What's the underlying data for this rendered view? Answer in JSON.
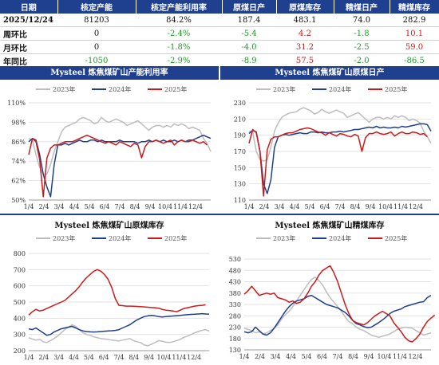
{
  "summary": {
    "headers": [
      "日期",
      "核定产能",
      "核定产能利用率",
      "原煤日产",
      "原煤库存",
      "精煤日产",
      "精煤库存"
    ],
    "rows": [
      {
        "label": "2025/12/24",
        "cells": [
          {
            "text": "81203",
            "tone": "neu"
          },
          {
            "text": "84.2%",
            "tone": "neu"
          },
          {
            "text": "187.4",
            "tone": "neu"
          },
          {
            "text": "483.1",
            "tone": "neu"
          },
          {
            "text": "74.0",
            "tone": "neu"
          },
          {
            "text": "282.9",
            "tone": "neu"
          }
        ]
      },
      {
        "label": "周环比",
        "cells": [
          {
            "text": "0",
            "tone": "neu"
          },
          {
            "text": "-2.4%",
            "tone": "neg"
          },
          {
            "text": "-5.4",
            "tone": "neg"
          },
          {
            "text": "4.2",
            "tone": "pos"
          },
          {
            "text": "-1.8",
            "tone": "neg"
          },
          {
            "text": "10.1",
            "tone": "pos"
          }
        ]
      },
      {
        "label": "月环比",
        "cells": [
          {
            "text": "0",
            "tone": "neu"
          },
          {
            "text": "-1.8%",
            "tone": "neg"
          },
          {
            "text": "-4.0",
            "tone": "neg"
          },
          {
            "text": "31.2",
            "tone": "pos"
          },
          {
            "text": "-2.5",
            "tone": "neg"
          },
          {
            "text": "59.0",
            "tone": "pos"
          }
        ]
      },
      {
        "label": "年同比",
        "cells": [
          {
            "text": "-1050",
            "tone": "neg"
          },
          {
            "text": "-2.9%",
            "tone": "neg"
          },
          {
            "text": "-8.9",
            "tone": "neg"
          },
          {
            "text": "57.5",
            "tone": "pos"
          },
          {
            "text": "-2.0",
            "tone": "neg"
          },
          {
            "text": "-86.5",
            "tone": "neg"
          }
        ]
      }
    ]
  },
  "colors": {
    "y2023": "#bdbdbd",
    "y2024": "#1f3f8f",
    "y2025": "#cc1a1a",
    "header_bg": "#1f3f8f",
    "positive": "#cc1a1a",
    "negative": "#1c9a2a"
  },
  "chart_data": [
    {
      "type": "line",
      "title": "Mysteel 炼焦煤矿山产能利用率",
      "x_ticks": [
        "1/4",
        "2/4",
        "3/4",
        "4/4",
        "5/4",
        "6/4",
        "7/4",
        "8/4",
        "9/4",
        "10/4",
        "11/4",
        "12/4"
      ],
      "y_ticks": [
        "50%",
        "62%",
        "74%",
        "86%",
        "98%",
        "110%"
      ],
      "ylim": [
        50,
        110
      ],
      "x_max": 12,
      "legend_position": "top",
      "series": [
        {
          "name": "2023年",
          "color": "#bdbdbd",
          "values": [
            88,
            87,
            78,
            70,
            66,
            66,
            72,
            80,
            86,
            92,
            95,
            96,
            97,
            98,
            100,
            101,
            100,
            99,
            97,
            98,
            101,
            99,
            98,
            99,
            100,
            99,
            98,
            96,
            97,
            98,
            99,
            97,
            95,
            93,
            95,
            96,
            96,
            95,
            96,
            95,
            97,
            96,
            97,
            96,
            94,
            95,
            94,
            93,
            88,
            85,
            80
          ]
        },
        {
          "name": "2024年",
          "color": "#1f3f8f",
          "values": [
            86,
            88,
            87,
            78,
            66,
            58,
            52,
            72,
            84,
            84,
            85,
            84,
            85,
            86,
            87,
            86,
            86,
            87,
            87,
            86,
            87,
            86,
            86,
            86,
            86,
            87,
            86,
            86,
            86,
            86,
            85,
            86,
            86,
            87,
            86,
            87,
            86,
            87,
            86,
            86,
            87,
            86,
            87,
            86,
            87,
            87,
            88,
            89,
            90,
            89,
            88
          ]
        },
        {
          "name": "2025年",
          "color": "#cc1a1a",
          "values": [
            78,
            88,
            86,
            75,
            52,
            76,
            82,
            84,
            84,
            85,
            86,
            86,
            86,
            87,
            88,
            89,
            90,
            89,
            88,
            87,
            86,
            85,
            86,
            85,
            84,
            86,
            85,
            84,
            83,
            85,
            84,
            76,
            83,
            86,
            86,
            87,
            86,
            85,
            86,
            87,
            84,
            86,
            87,
            86,
            86,
            87,
            86,
            85,
            86,
            84
          ]
        }
      ]
    },
    {
      "type": "line",
      "title": "Mysteel 炼焦煤矿山原煤日产",
      "x_ticks": [
        "1/4",
        "2/4",
        "3/4",
        "4/4",
        "5/4",
        "6/4",
        "7/4",
        "8/4",
        "9/4",
        "10/4",
        "11/4",
        "12/4"
      ],
      "y_ticks": [
        "110",
        "130",
        "150",
        "170",
        "190",
        "210",
        "230"
      ],
      "ylim": [
        110,
        230
      ],
      "x_max": 12,
      "legend_position": "top",
      "series": [
        {
          "name": "2023年",
          "color": "#bdbdbd",
          "values": [
            195,
            194,
            170,
            160,
            158,
            160,
            175,
            195,
            205,
            212,
            215,
            217,
            218,
            219,
            222,
            224,
            222,
            220,
            216,
            218,
            222,
            219,
            217,
            219,
            221,
            219,
            217,
            212,
            214,
            216,
            218,
            214,
            210,
            206,
            210,
            212,
            212,
            210,
            212,
            210,
            214,
            212,
            214,
            212,
            208,
            210,
            208,
            205,
            195,
            188,
            180
          ]
        },
        {
          "name": "2024年",
          "color": "#1f3f8f",
          "values": [
            192,
            196,
            194,
            170,
            130,
            118,
            135,
            175,
            188,
            190,
            191,
            190,
            191,
            192,
            193,
            192,
            192,
            194,
            194,
            193,
            194,
            193,
            193,
            194,
            194,
            195,
            194,
            195,
            196,
            197,
            197,
            198,
            199,
            200,
            199,
            201,
            199,
            200,
            199,
            199,
            200,
            199,
            201,
            200,
            201,
            202,
            203,
            204,
            204,
            203,
            195
          ]
        },
        {
          "name": "2025年",
          "color": "#cc1a1a",
          "values": [
            180,
            197,
            193,
            170,
            115,
            172,
            185,
            188,
            188,
            190,
            192,
            193,
            193,
            195,
            197,
            198,
            199,
            198,
            196,
            194,
            193,
            190,
            193,
            191,
            189,
            192,
            191,
            189,
            188,
            191,
            189,
            170,
            187,
            192,
            192,
            194,
            192,
            191,
            192,
            194,
            189,
            192,
            194,
            192,
            192,
            194,
            193,
            191,
            192,
            188
          ]
        }
      ]
    },
    {
      "type": "line",
      "title": "Mysteel 炼焦煤矿山原煤库存",
      "x_ticks": [
        "1/4",
        "2/4",
        "3/4",
        "4/4",
        "5/4",
        "6/4",
        "7/4",
        "8/4",
        "9/4",
        "10/4",
        "11/4",
        "12/4"
      ],
      "y_ticks": [
        "200",
        "300",
        "400",
        "500",
        "600",
        "700",
        "800"
      ],
      "ylim": [
        200,
        800
      ],
      "x_max": 12,
      "legend_position": "top",
      "series": [
        {
          "name": "2023年",
          "color": "#bdbdbd",
          "values": [
            280,
            272,
            265,
            270,
            255,
            250,
            262,
            275,
            290,
            310,
            330,
            345,
            360,
            350,
            330,
            310,
            300,
            295,
            285,
            280,
            275,
            272,
            270,
            265,
            262,
            260,
            265,
            270,
            275,
            262,
            255,
            250,
            235,
            230,
            240,
            250,
            262,
            258,
            252,
            250,
            255,
            262,
            270,
            282,
            290,
            300,
            310,
            318,
            325,
            330,
            320
          ]
        },
        {
          "name": "2024年",
          "color": "#1f3f8f",
          "values": [
            335,
            330,
            340,
            325,
            310,
            295,
            300,
            315,
            325,
            335,
            340,
            345,
            350,
            340,
            330,
            322,
            318,
            316,
            315,
            316,
            318,
            320,
            322,
            323,
            325,
            330,
            340,
            350,
            360,
            375,
            390,
            400,
            410,
            415,
            418,
            415,
            410,
            408,
            410,
            412,
            414,
            416,
            418,
            420,
            422,
            424,
            425,
            426,
            428,
            426,
            425
          ]
        },
        {
          "name": "2025年",
          "color": "#cc1a1a",
          "values": [
            420,
            440,
            455,
            445,
            450,
            460,
            470,
            480,
            490,
            500,
            510,
            530,
            550,
            570,
            595,
            625,
            650,
            670,
            690,
            700,
            690,
            670,
            640,
            590,
            520,
            480,
            478,
            475,
            475,
            474,
            473,
            472,
            470,
            468,
            466,
            464,
            462,
            455,
            450,
            448,
            445,
            440,
            450,
            460,
            465,
            470,
            475,
            478,
            480,
            483
          ]
        }
      ]
    },
    {
      "type": "line",
      "title": "Mysteel 炼焦煤矿山精煤库存",
      "x_ticks": [
        "1/4",
        "2/4",
        "3/4",
        "4/4",
        "5/4",
        "6/4",
        "7/4",
        "8/4",
        "9/4",
        "10/4",
        "11/4",
        "12/4"
      ],
      "y_ticks": [
        "130",
        "180",
        "230",
        "280",
        "330",
        "380",
        "430",
        "480",
        "530"
      ],
      "ylim": [
        130,
        530
      ],
      "x_max": 12,
      "legend_position": "top",
      "series": [
        {
          "name": "2023年",
          "color": "#bdbdbd",
          "values": [
            225,
            220,
            215,
            205,
            210,
            200,
            205,
            215,
            225,
            240,
            265,
            285,
            300,
            320,
            345,
            370,
            395,
            420,
            440,
            450,
            435,
            415,
            385,
            360,
            340,
            320,
            300,
            275,
            255,
            245,
            230,
            220,
            215,
            205,
            195,
            190,
            185,
            190,
            195,
            200,
            210,
            220,
            225,
            230,
            228,
            225,
            215,
            205,
            195,
            200,
            205
          ]
        },
        {
          "name": "2024年",
          "color": "#1f3f8f",
          "values": [
            210,
            205,
            210,
            230,
            215,
            200,
            195,
            205,
            225,
            250,
            275,
            300,
            320,
            335,
            345,
            350,
            355,
            365,
            370,
            360,
            350,
            340,
            330,
            325,
            320,
            315,
            305,
            295,
            280,
            260,
            245,
            240,
            232,
            228,
            230,
            240,
            250,
            262,
            275,
            290,
            300,
            305,
            310,
            320,
            325,
            330,
            335,
            340,
            342,
            360,
            370
          ]
        },
        {
          "name": "2025年",
          "color": "#cc1a1a",
          "values": [
            375,
            390,
            410,
            390,
            370,
            375,
            380,
            375,
            380,
            360,
            355,
            350,
            340,
            345,
            335,
            340,
            355,
            380,
            410,
            430,
            460,
            480,
            490,
            500,
            470,
            430,
            380,
            330,
            290,
            260,
            250,
            245,
            240,
            250,
            265,
            280,
            290,
            300,
            290,
            280,
            250,
            230,
            210,
            185,
            170,
            165,
            180,
            200,
            230,
            255,
            270,
            283
          ]
        }
      ]
    }
  ]
}
